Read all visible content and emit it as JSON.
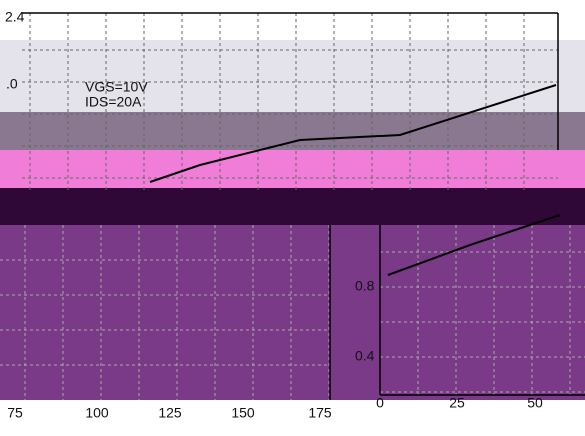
{
  "top_chart": {
    "y_labels": [
      "2.4",
      ".0"
    ],
    "annotations": [
      "VGS=10V",
      "IDS=20A"
    ]
  },
  "left_chart": {
    "x_labels": [
      "75",
      "100",
      "125",
      "150",
      "175"
    ]
  },
  "right_chart": {
    "y_labels": [
      "0.8",
      "0.4"
    ],
    "x_labels": [
      "0",
      "25",
      "50"
    ]
  }
}
